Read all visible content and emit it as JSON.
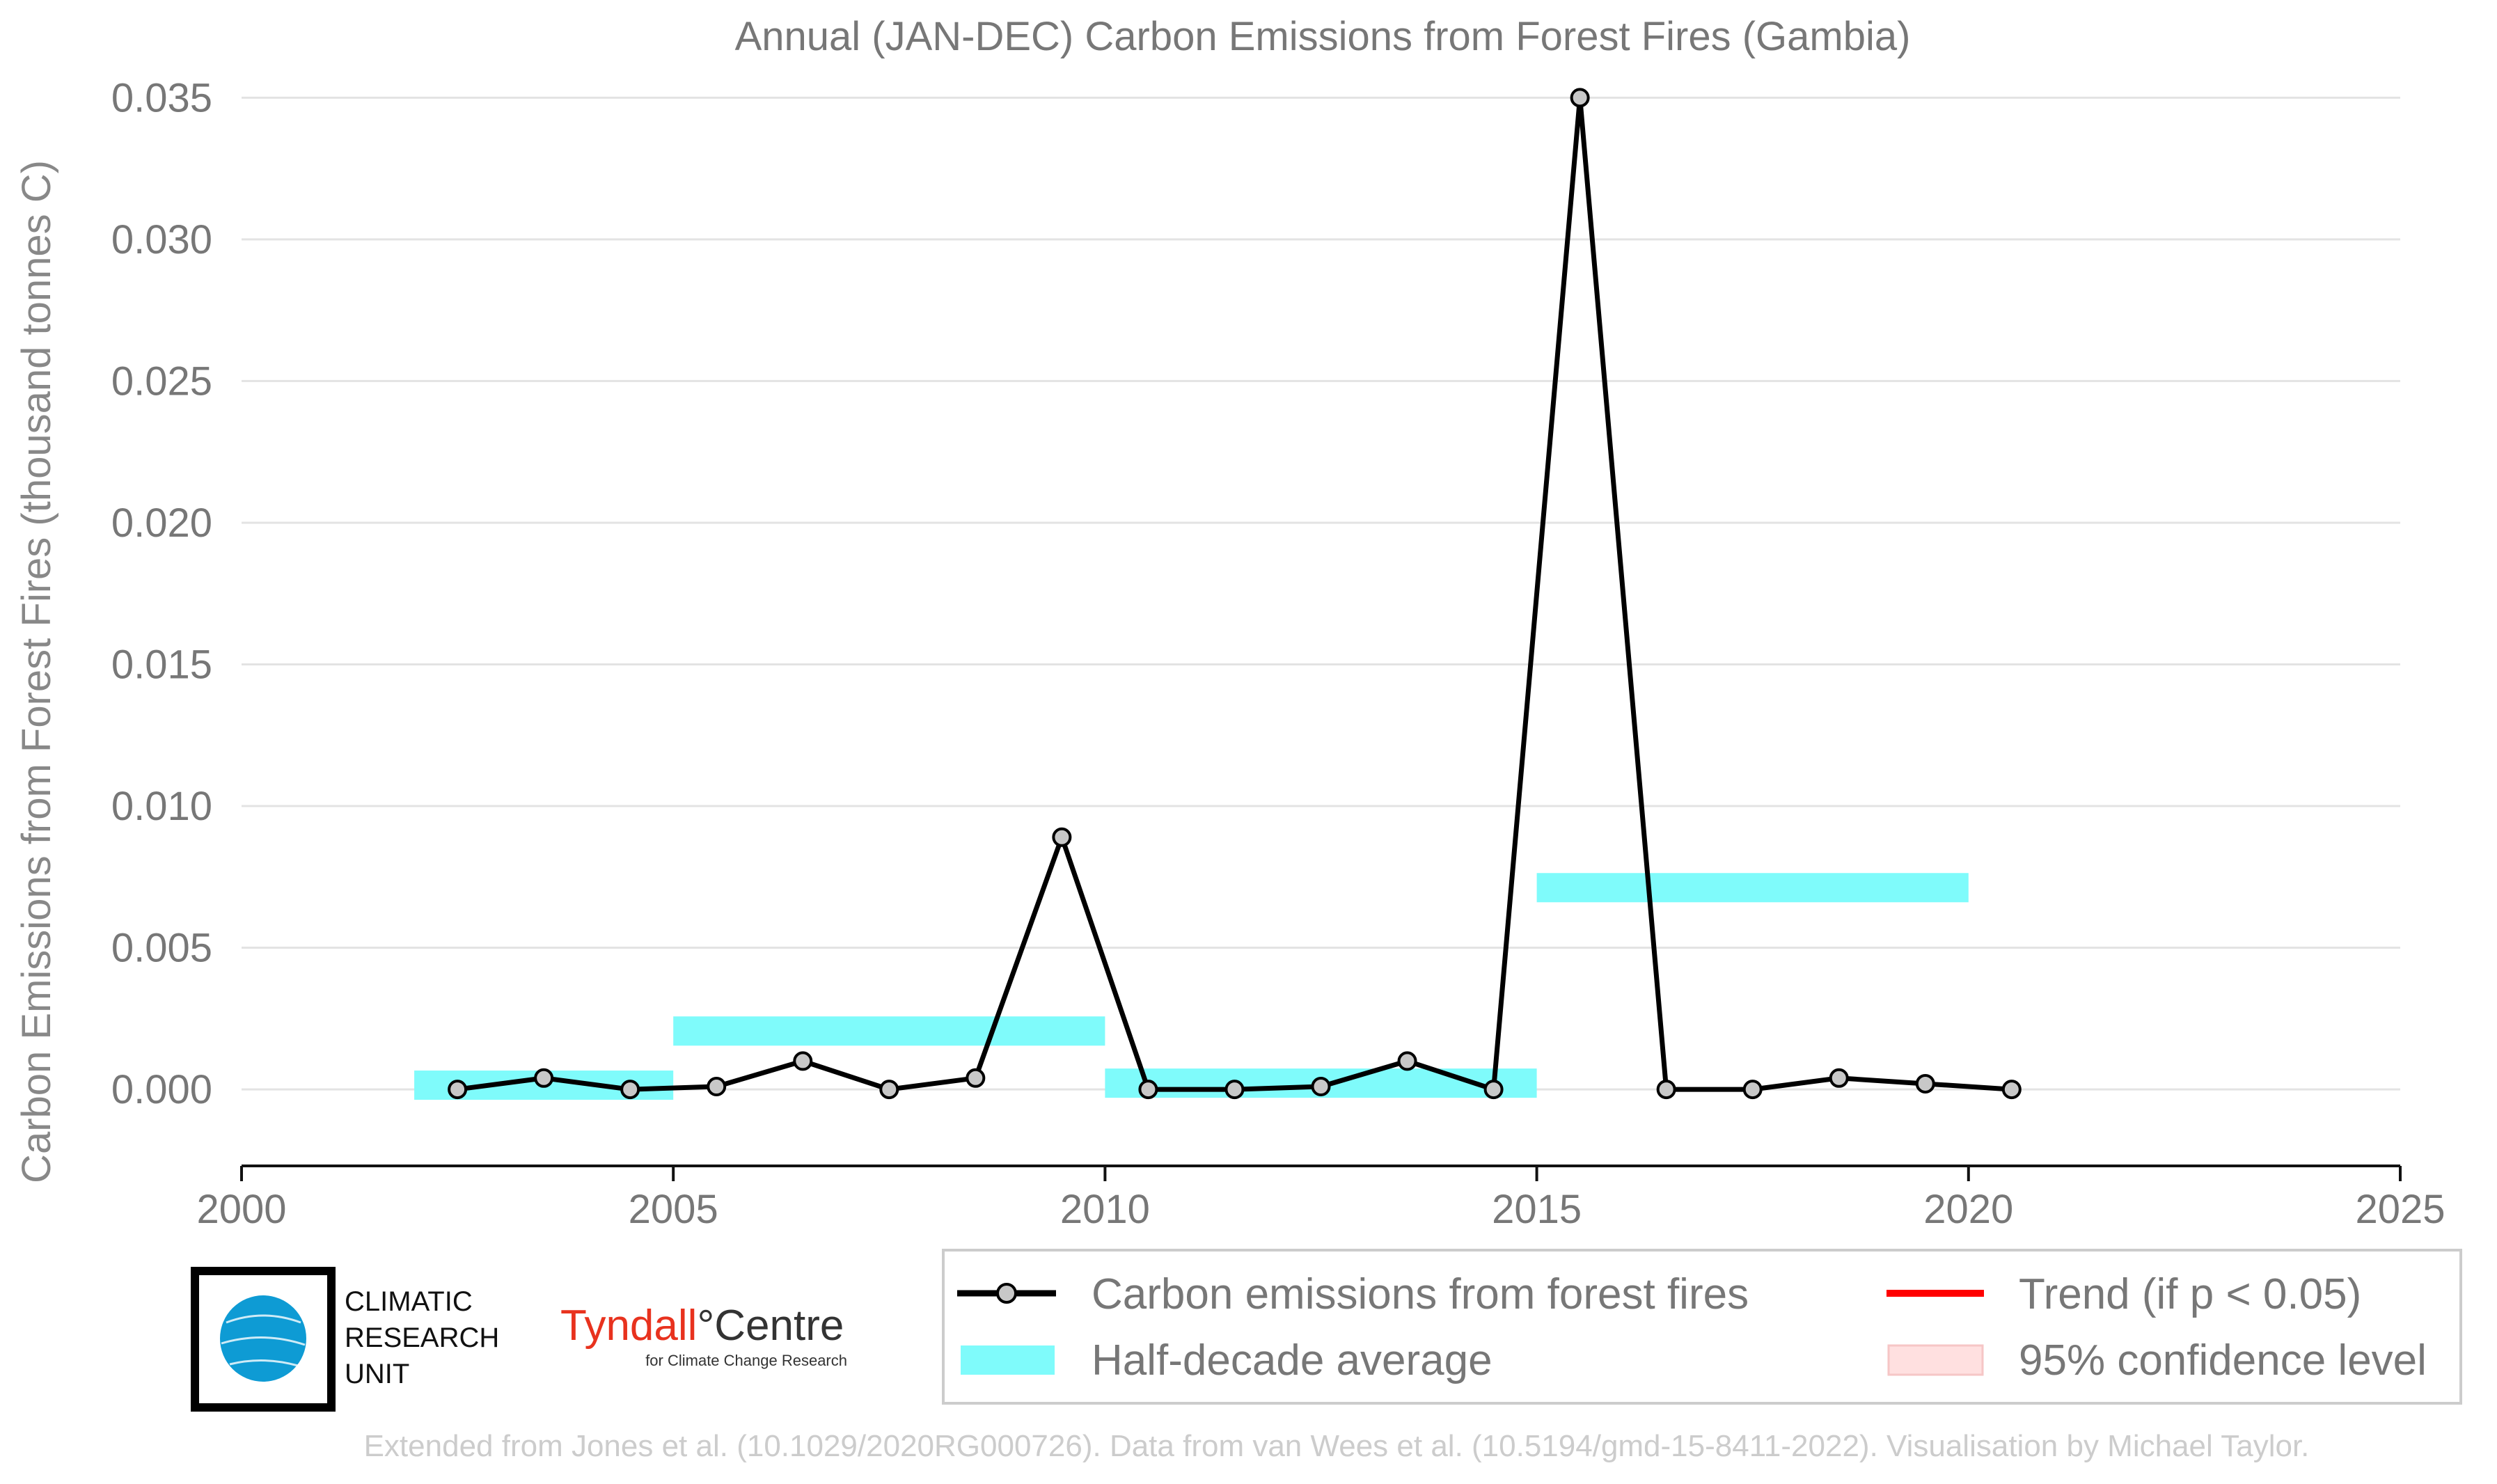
{
  "chart_data": {
    "type": "line",
    "title": "Annual (JAN-DEC) Carbon Emissions from Forest Fires (Gambia)",
    "xlabel": "",
    "ylabel": "Carbon Emissions from Forest Fires (thousand tonnes C)",
    "xlim": [
      2000,
      2025
    ],
    "ylim": [
      -0.0027,
      0.0355
    ],
    "x_ticks": [
      2000,
      2005,
      2010,
      2015,
      2020,
      2025
    ],
    "y_ticks": [
      0.0,
      0.005,
      0.01,
      0.015,
      0.02,
      0.025,
      0.03,
      0.035
    ],
    "y_tick_labels": [
      "0.000",
      "0.005",
      "0.010",
      "0.015",
      "0.020",
      "0.025",
      "0.030",
      "0.035"
    ],
    "grid": "horizontal",
    "series": [
      {
        "name": "Carbon emissions from forest fires",
        "color": "#000000",
        "marker_fill": "#c8c8c8",
        "x": [
          2002.5,
          2003.5,
          2004.5,
          2005.5,
          2006.5,
          2007.5,
          2008.5,
          2009.5,
          2010.5,
          2011.5,
          2012.5,
          2013.5,
          2014.5,
          2015.5,
          2016.5,
          2017.5,
          2018.5,
          2019.5,
          2020.5
        ],
        "y": [
          0.0,
          0.0004,
          0.0,
          0.0001,
          0.001,
          0.0,
          0.0004,
          0.0089,
          0.0,
          0.0,
          0.0001,
          0.001,
          0.0,
          0.035,
          0.0,
          0.0,
          0.0004,
          0.0002,
          0.0
        ]
      }
    ],
    "half_decade_average": {
      "name": "Half-decade average",
      "color": "#7ffbfb",
      "segments": [
        {
          "x0": 2002,
          "x1": 2005,
          "y": 0.00015
        },
        {
          "x0": 2005,
          "x1": 2010,
          "y": 0.00206
        },
        {
          "x0": 2010,
          "x1": 2015,
          "y": 0.00022
        },
        {
          "x0": 2015,
          "x1": 2020,
          "y": 0.00712
        }
      ]
    },
    "legend": {
      "placement": "bottom-right",
      "entries": [
        {
          "label": "Carbon emissions from forest fires",
          "kind": "line-marker",
          "color": "#000000"
        },
        {
          "label": "Half-decade average",
          "kind": "band",
          "color": "#7ffbfb"
        },
        {
          "label": "Trend (if p < 0.05)",
          "kind": "line",
          "color": "#ff0000"
        },
        {
          "label": "95% confidence level",
          "kind": "band",
          "color": "#ffe0e0"
        }
      ]
    }
  },
  "logos": {
    "cru": {
      "line1": "CLIMATIC",
      "line2": "RESEARCH",
      "line3": "UNIT",
      "color": "#0e9bd4"
    },
    "tyndall": {
      "name": "Tyndall",
      "degree": "°",
      "centre": "Centre",
      "sub": "for Climate Change Research",
      "color": "#e8321e"
    }
  },
  "footer": "Extended from Jones et al. (10.1029/2020RG000726). Data from van Wees et al. (10.5194/gmd-15-8411-2022). Visualisation by Michael Taylor."
}
